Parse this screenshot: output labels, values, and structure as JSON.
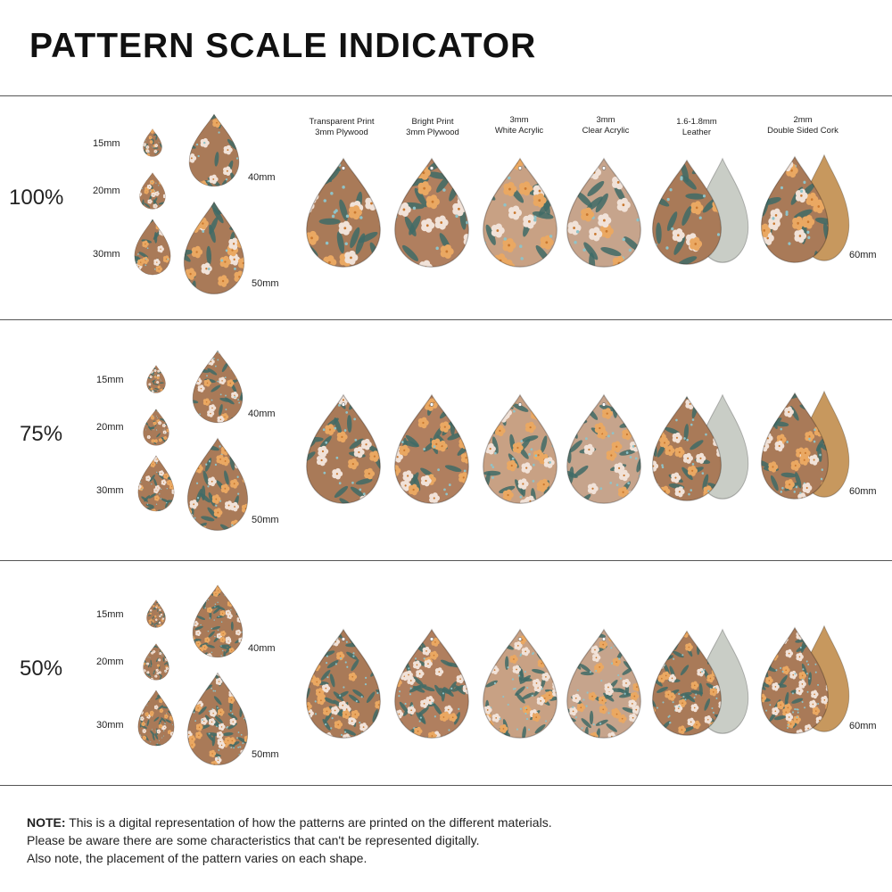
{
  "title": "PATTERN SCALE INDICATOR",
  "materials": [
    {
      "line1": "Transparent Print",
      "line2": "3mm Plywood"
    },
    {
      "line1": "Bright Print",
      "line2": "3mm Plywood"
    },
    {
      "line1": "3mm",
      "line2": "White Acrylic"
    },
    {
      "line1": "3mm",
      "line2": "Clear Acrylic"
    },
    {
      "line1": "1.6-1.8mm",
      "line2": "Leather"
    },
    {
      "line1": "2mm",
      "line2": "Double Sided Cork"
    }
  ],
  "scales": [
    {
      "label": "100%",
      "sizes": [
        "15mm",
        "20mm",
        "30mm",
        "40mm",
        "50mm"
      ],
      "large_size": "60mm"
    },
    {
      "label": "75%",
      "sizes": [
        "15mm",
        "20mm",
        "30mm",
        "40mm",
        "50mm"
      ],
      "large_size": "60mm"
    },
    {
      "label": "50%",
      "sizes": [
        "15mm",
        "20mm",
        "30mm",
        "40mm",
        "50mm"
      ],
      "large_size": "60mm"
    }
  ],
  "note": {
    "bold": "NOTE:",
    "line1": "This is a digital representation of how the patterns are printed on the different materials.",
    "line2": "Please be aware there are some characteristics that can't be represented digitally.",
    "line3": "Also note, the placement of the pattern varies on each shape."
  },
  "colors": {
    "plywood": "#a97a58",
    "bright": "#b07f5f",
    "white_acrylic": "#c8a184",
    "clear_acrylic": "#c09a80",
    "leather_back": "#c9cdc6",
    "cork": "#c7985e",
    "orange": "#eaa862",
    "petal": "#f1e2d8",
    "leaf": "#3f6b66",
    "blue": "#8fc3c8"
  }
}
